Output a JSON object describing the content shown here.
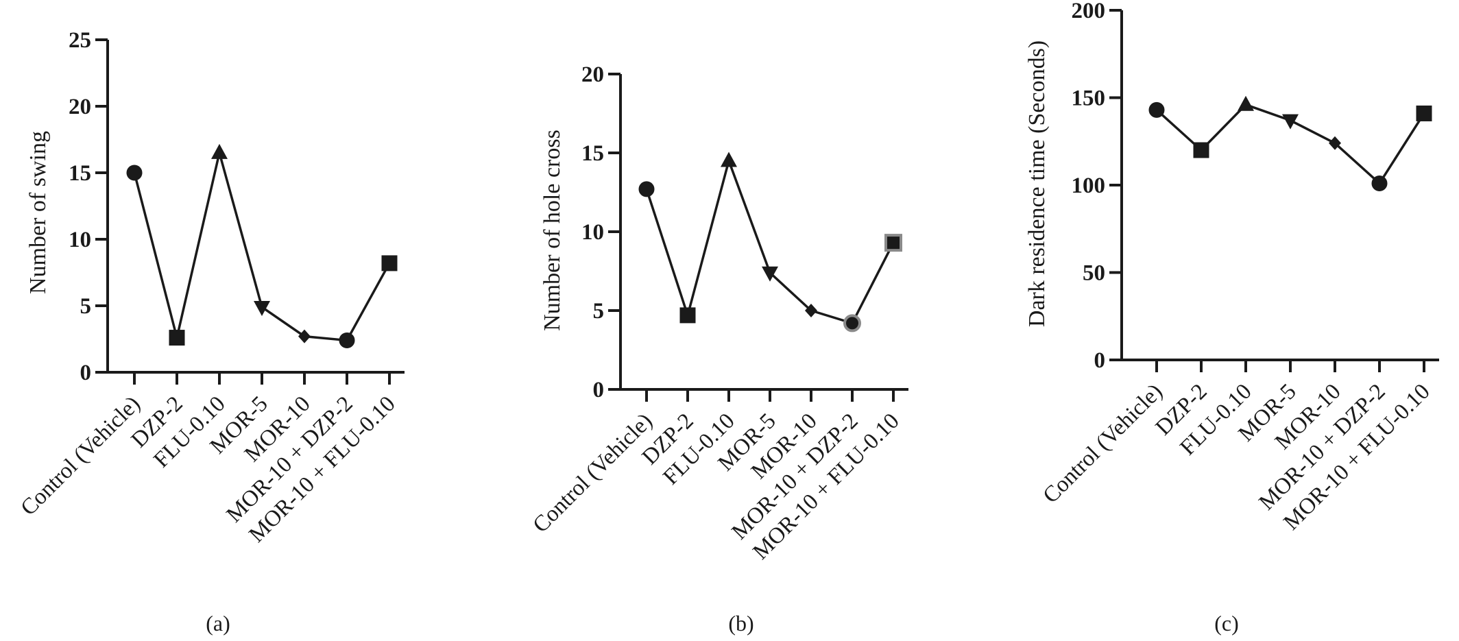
{
  "chart_data": [
    {
      "type": "line",
      "panel_label": "(a)",
      "ylabel": "Number of swing",
      "xlabel": "",
      "title": "",
      "ylim": [
        0,
        25
      ],
      "yticks": [
        0,
        5,
        10,
        15,
        20,
        25
      ],
      "categories": [
        "Control (Vehicle)",
        "DZP-2",
        "FLU-0.10",
        "MOR-5",
        "MOR-10",
        "MOR-10 + DZP-2",
        "MOR-10 + FLU-0.10"
      ],
      "series": [
        {
          "values": [
            15.0,
            2.6,
            16.5,
            4.9,
            2.7,
            2.4,
            8.2
          ]
        }
      ],
      "markers": [
        "circle",
        "square",
        "triangle-up",
        "triangle-down",
        "diamond",
        "circle",
        "square"
      ],
      "grid": false
    },
    {
      "type": "line",
      "panel_label": "(b)",
      "ylabel": "Number of hole cross",
      "xlabel": "",
      "title": "",
      "ylim": [
        0,
        20
      ],
      "yticks": [
        0,
        5,
        10,
        15,
        20
      ],
      "categories": [
        "Control (Vehicle)",
        "DZP-2",
        "FLU-0.10",
        "MOR-5",
        "MOR-10",
        "MOR-10 + DZP-2",
        "MOR-10 + FLU-0.10"
      ],
      "series": [
        {
          "values": [
            12.7,
            4.7,
            14.5,
            7.4,
            5.0,
            4.2,
            9.3
          ]
        }
      ],
      "markers": [
        "circle",
        "square",
        "triangle-up",
        "triangle-down",
        "diamond",
        "circle-gray",
        "square-gray"
      ],
      "grid": false
    },
    {
      "type": "line",
      "panel_label": "(c)",
      "ylabel": "Dark residence time (Seconds)",
      "xlabel": "",
      "title": "",
      "ylim": [
        0,
        200
      ],
      "yticks": [
        0,
        50,
        100,
        150,
        200
      ],
      "categories": [
        "Control (Vehicle)",
        "DZP-2",
        "FLU-0.10",
        "MOR-5",
        "MOR-10",
        "MOR-10 + DZP-2",
        "MOR-10 + FLU-0.10"
      ],
      "series": [
        {
          "values": [
            143,
            120,
            146,
            137,
            124,
            101,
            141
          ]
        }
      ],
      "markers": [
        "circle",
        "square",
        "triangle-up",
        "triangle-down",
        "diamond",
        "circle",
        "square"
      ],
      "grid": false
    }
  ]
}
